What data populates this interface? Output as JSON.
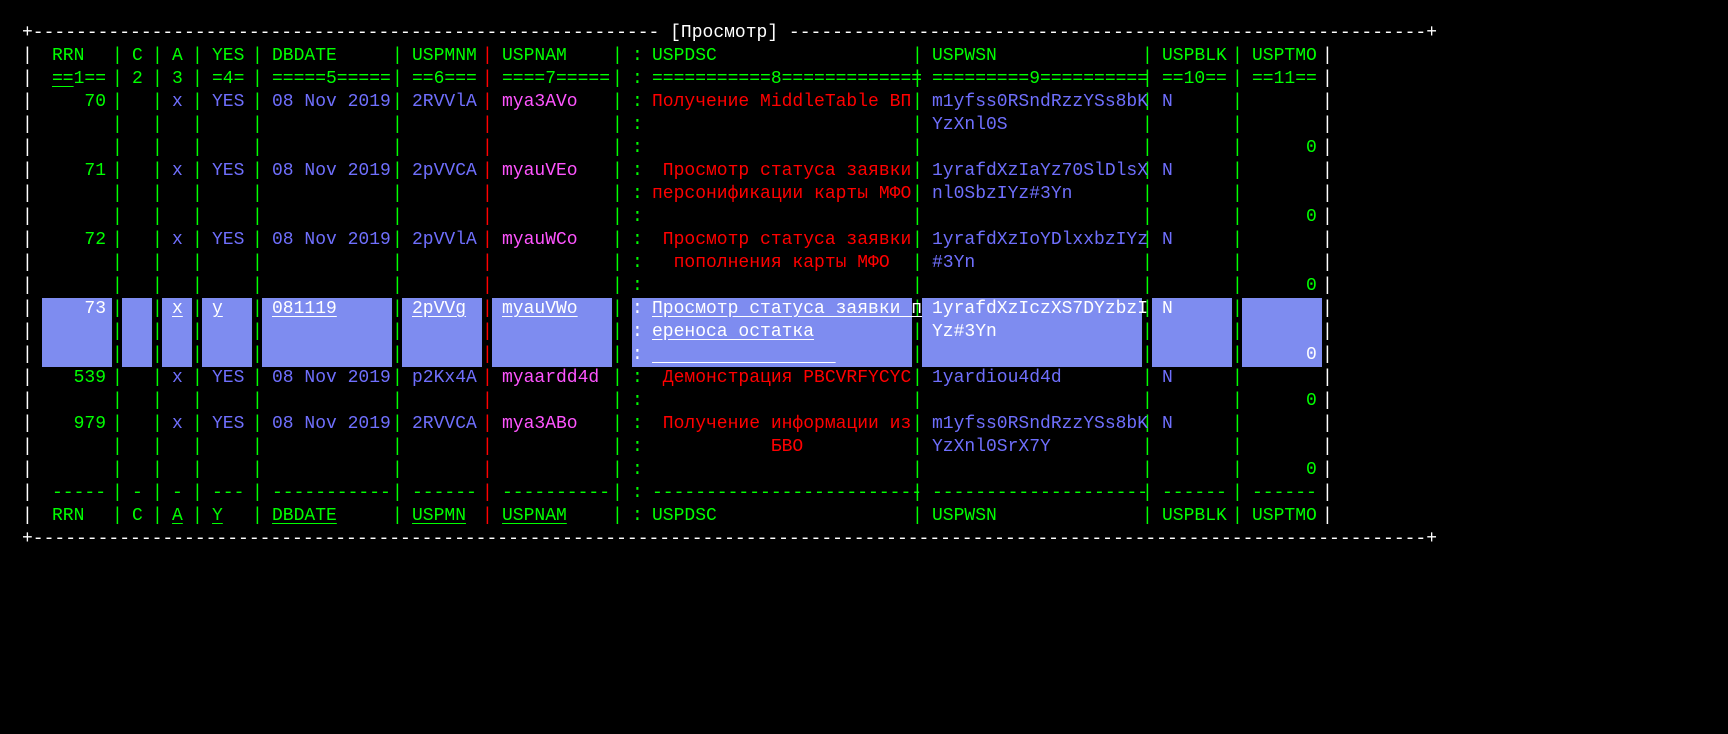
{
  "colors": {
    "background": "#000000",
    "green": "#00ff00",
    "blue": "#6f6ffd",
    "red": "#ff0000",
    "magenta": "#ff55ff",
    "white": "#ffffff",
    "selection_bg": "#7e8cf0",
    "selection_fg": "#ffffff"
  },
  "title": "[Просмотр]",
  "columns": [
    {
      "start": 3,
      "width": 5,
      "sep_at": 9,
      "sep_color": "green",
      "name": "RRN",
      "num_hdr": "==1==",
      "dashes": "-----",
      "footer": "RRN"
    },
    {
      "start": 11,
      "width": 1,
      "sep_at": 13,
      "sep_color": "green",
      "name": "C",
      "num_hdr": "2",
      "dashes": "-",
      "footer": "C"
    },
    {
      "start": 15,
      "width": 1,
      "sep_at": 17,
      "sep_color": "green",
      "name": "A",
      "num_hdr": "3",
      "dashes": "-",
      "footer": "A"
    },
    {
      "start": 19,
      "width": 3,
      "sep_at": 23,
      "sep_color": "green",
      "name": "YES",
      "num_hdr": "=4=",
      "dashes": "---",
      "footer": "Y"
    },
    {
      "start": 25,
      "width": 11,
      "sep_at": 37,
      "sep_color": "green",
      "name": "DBDATE",
      "num_hdr": "=====5=====",
      "dashes": "-----------",
      "footer": "DBDATE"
    },
    {
      "start": 39,
      "width": 6,
      "sep_at": 46,
      "sep_color": "red",
      "name": "USPMNM",
      "num_hdr": "==6===",
      "dashes": "------",
      "footer": "USPMN"
    },
    {
      "start": 48,
      "width": 10,
      "sep_at": 59,
      "sep_color": "green",
      "name": "USPNAM",
      "num_hdr": "====7=====",
      "dashes": "----------",
      "footer": "USPNAM"
    },
    {
      "start": 63,
      "width": 25,
      "sep_at": 89,
      "sep_color": "green",
      "name": "USPDSC",
      "num_hdr": "===========8=============",
      "dashes": "-------------------------",
      "footer": "USPDSC"
    },
    {
      "start": 91,
      "width": 20,
      "sep_at": 112,
      "sep_color": "green",
      "name": "USPWSN",
      "num_hdr": "=========9==========",
      "dashes": "--------------------",
      "footer": "USPWSN"
    },
    {
      "start": 114,
      "width": 6,
      "sep_at": 121,
      "sep_color": "green",
      "name": "USPBLK",
      "num_hdr": "==10==",
      "dashes": "------",
      "footer": "USPBLK"
    },
    {
      "start": 123,
      "width": 6,
      "sep_at": null,
      "sep_color": null,
      "name": "USPTMO",
      "num_hdr": "==11==",
      "dashes": "------",
      "footer": "USPTMO"
    }
  ],
  "colon_column": 61,
  "rows": [
    {
      "selected": false,
      "RRN": "70",
      "A": "x",
      "YES": "YES",
      "DBDATE": "08 Nov 2019",
      "USPMNM": "2RVVlA",
      "USPNAM": "mya3AVo",
      "USPDSC": [
        "Получение MiddleTable ВП"
      ],
      "USPWSN": [
        "m1yfss0RSndRzzYSs8bK",
        "YzXnl0S"
      ],
      "USPBLK": "N",
      "USPTMO": "0"
    },
    {
      "selected": false,
      "RRN": "71",
      "A": "x",
      "YES": "YES",
      "DBDATE": "08 Nov 2019",
      "USPMNM": "2pVVCA",
      "USPNAM": "myauVEo",
      "USPDSC": [
        "Просмотр статуса заявки",
        "персонификации карты МФО"
      ],
      "USPWSN": [
        "1yrafdXzIaYz70SlDlsX",
        "nl0SbzIYz#3Yn"
      ],
      "USPBLK": "N",
      "USPTMO": "0"
    },
    {
      "selected": false,
      "RRN": "72",
      "A": "x",
      "YES": "YES",
      "DBDATE": "08 Nov 2019",
      "USPMNM": "2pVVlA",
      "USPNAM": "myauWCo",
      "USPDSC": [
        "Просмотр статуса заявки",
        "пополнения карты МФО"
      ],
      "USPWSN": [
        "1yrafdXzIoYDlxxbzIYz",
        "#3Yn"
      ],
      "USPBLK": "N",
      "USPTMO": "0"
    },
    {
      "selected": true,
      "RRN": "73",
      "A": "x",
      "YES": "y",
      "DBDATE": "081119",
      "USPMNM": "2pVVg",
      "USPNAM": "myauVWo",
      "USPDSC": [
        "Просмотр статуса заявки п",
        "ереноса остатка"
      ],
      "USPWSN": [
        "1yrafdXzIczXS7DYzbzI",
        "Yz#3Yn"
      ],
      "USPBLK": "N",
      "USPTMO": "0"
    },
    {
      "selected": false,
      "RRN": "539",
      "A": "x",
      "YES": "YES",
      "DBDATE": "08 Nov 2019",
      "USPMNM": "p2Kx4A",
      "USPNAM": "myaardd4d",
      "USPDSC": [
        "Демонстрация PBCVRFYCYC"
      ],
      "USPWSN": [
        "1yardiou4d4d"
      ],
      "USPBLK": "N",
      "USPTMO": "0"
    },
    {
      "selected": false,
      "RRN": "979",
      "A": "x",
      "YES": "YES",
      "DBDATE": "08 Nov 2019",
      "USPMNM": "2RVVCA",
      "USPNAM": "mya3ABo",
      "USPDSC": [
        "Получение информации из",
        "БВО"
      ],
      "USPWSN": [
        "m1yfss0RSndRzzYSs8bK",
        "YzXnl0SrX7Y"
      ],
      "USPBLK": "N",
      "USPTMO": "0"
    }
  ],
  "border": {
    "width_chars": 131
  }
}
